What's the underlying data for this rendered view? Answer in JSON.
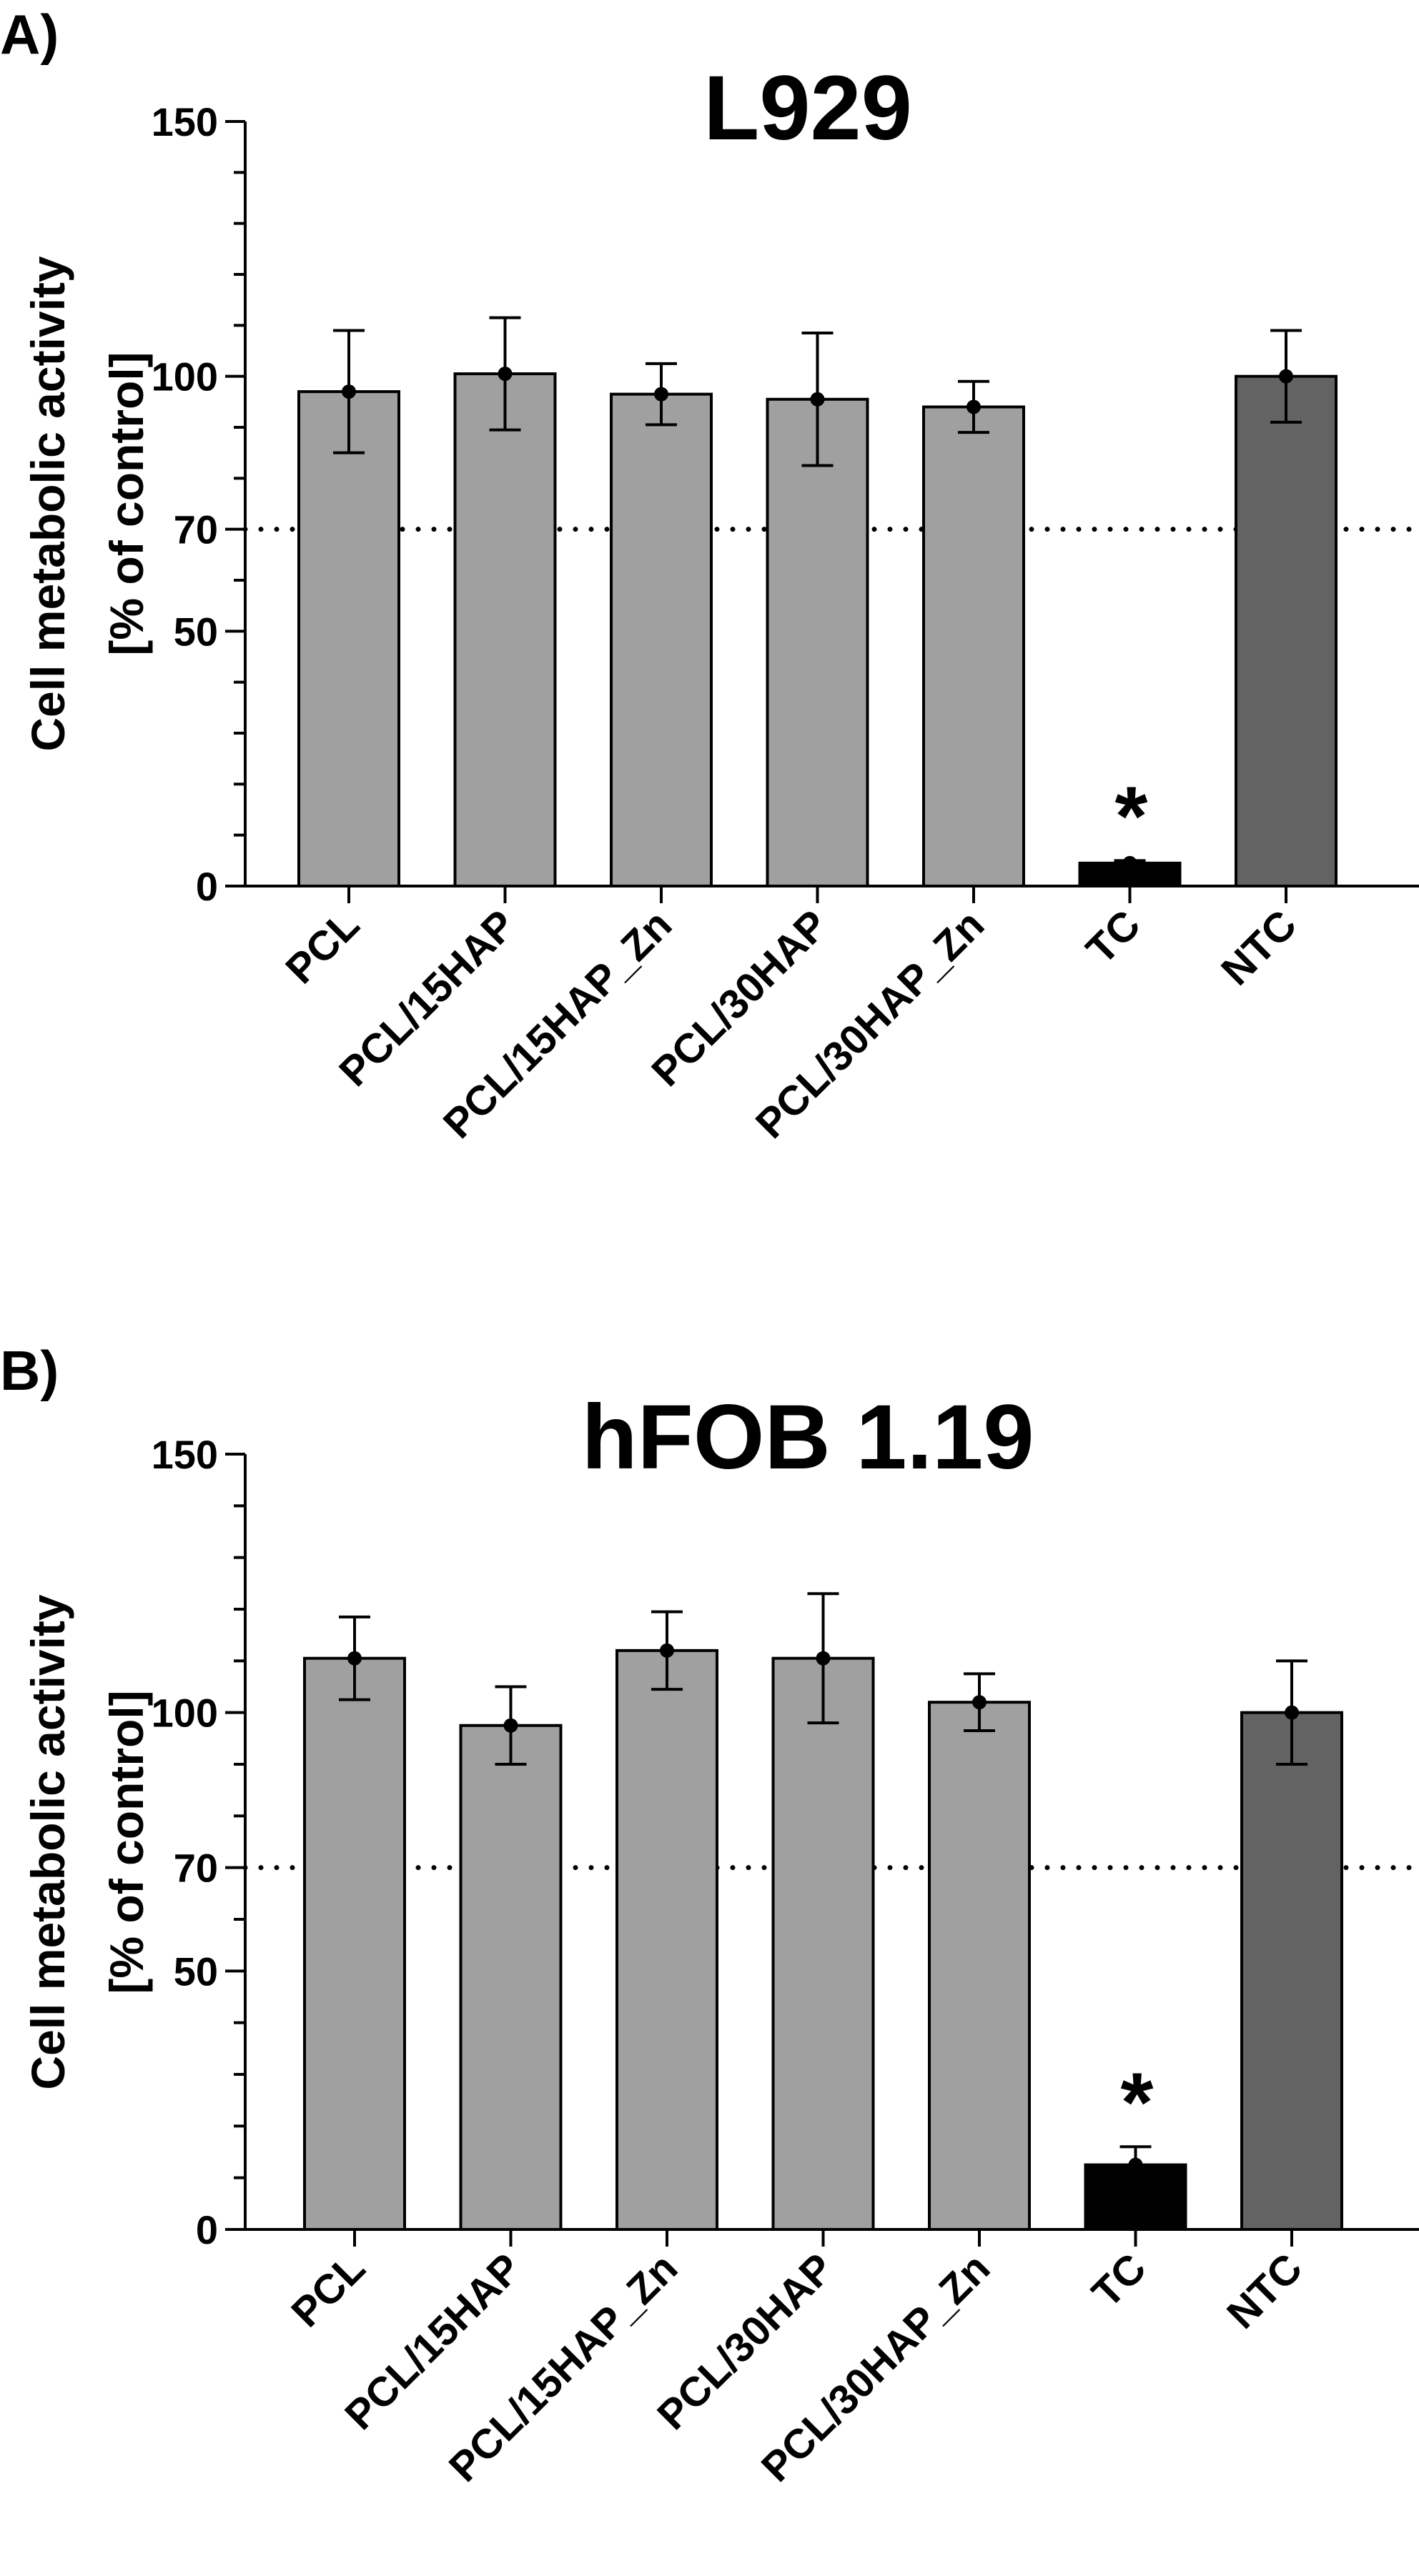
{
  "chart_data": [
    {
      "type": "bar",
      "panel": "A)",
      "title": "L929",
      "ylabel_line1": "Cell metabolic activity",
      "ylabel_line2": "[% of control]",
      "ylim": [
        0,
        150
      ],
      "yticks": [
        0,
        50,
        70,
        100,
        150
      ],
      "reference_line": 70,
      "categories": [
        "PCL",
        "PCL/15HAP",
        "PCL/15HAP_Zn",
        "PCL/30HAP",
        "PCL/30HAP_Zn",
        "TC",
        "NTC"
      ],
      "values": [
        97,
        100.5,
        96.5,
        95.5,
        94,
        4.5,
        100
      ],
      "errors": [
        12,
        11,
        6,
        13,
        5,
        0.5,
        9
      ],
      "colors": [
        "#a0a0a0",
        "#a0a0a0",
        "#a0a0a0",
        "#a0a0a0",
        "#a0a0a0",
        "#000000",
        "#636363"
      ],
      "significance": [
        {
          "category": "TC",
          "label": "*"
        }
      ]
    },
    {
      "type": "bar",
      "panel": "B)",
      "title": "hFOB 1.19",
      "ylabel_line1": "Cell metabolic activity",
      "ylabel_line2": "[% of control]",
      "ylim": [
        0,
        150
      ],
      "yticks": [
        0,
        50,
        70,
        100,
        150
      ],
      "reference_line": 70,
      "categories": [
        "PCL",
        "PCL/15HAP",
        "PCL/15HAP_Zn",
        "PCL/30HAP",
        "PCL/30HAP_Zn",
        "TC",
        "NTC"
      ],
      "values": [
        110.5,
        97.5,
        112,
        110.5,
        102,
        12.5,
        100
      ],
      "errors": [
        8,
        7.5,
        7.5,
        12.5,
        5.5,
        3.5,
        10
      ],
      "colors": [
        "#a0a0a0",
        "#a0a0a0",
        "#a0a0a0",
        "#a0a0a0",
        "#a0a0a0",
        "#000000",
        "#636363"
      ],
      "significance": [
        {
          "category": "TC",
          "label": "*"
        }
      ]
    }
  ]
}
